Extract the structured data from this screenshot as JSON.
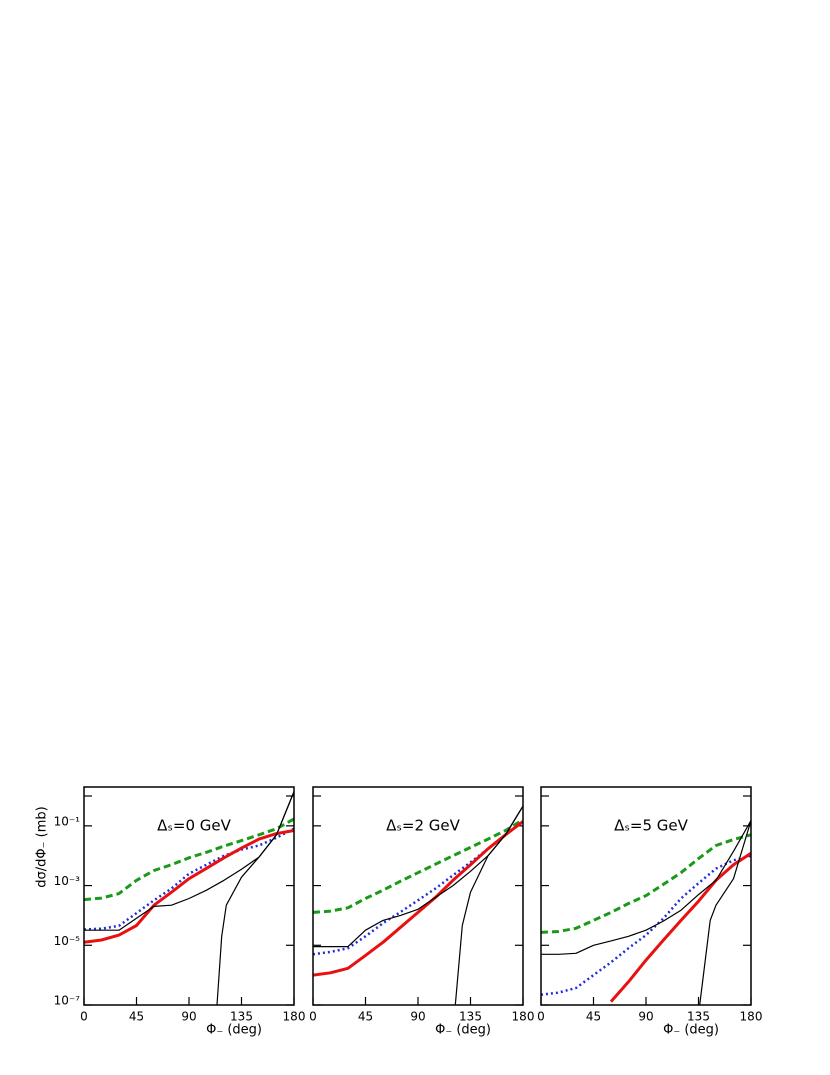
{
  "chart_data": [
    {
      "type": "line",
      "annotation": "Δₛ=0 GeV",
      "y_label": "dσ/dΦ₋ (mb)",
      "x_label": "Φ₋ (deg)",
      "log_y": true,
      "x": [
        0,
        15,
        30,
        45,
        60,
        75,
        90,
        105,
        120,
        135,
        150,
        165,
        180
      ],
      "xlim": [
        0,
        180
      ],
      "xticks": [
        0,
        45,
        90,
        135,
        180
      ],
      "ylim": [
        1e-07,
        2
      ],
      "yticks": [
        {
          "value": 1e-07,
          "label": "10⁻⁷"
        },
        {
          "value": 1e-05,
          "label": "10⁻⁵"
        },
        {
          "value": 0.001,
          "label": "10⁻³"
        },
        {
          "value": 0.1,
          "label": "10⁻¹"
        },
        1
      ],
      "series": [
        {
          "color": "#1a9a1a",
          "dash": "dashed",
          "values": [
            0.00034,
            0.00038,
            0.00054,
            0.0015,
            0.0032,
            0.005,
            0.0085,
            0.013,
            0.021,
            0.032,
            0.05,
            0.08,
            0.17
          ]
        },
        {
          "color": "#1f2fd8",
          "dash": "dotted",
          "values": [
            3.4e-05,
            3.6e-05,
            4.5e-05,
            0.00012,
            0.00032,
            0.0008,
            0.0025,
            0.005,
            0.01,
            0.016,
            0.022,
            0.04,
            0.08
          ]
        },
        {
          "color": "#e81010",
          "dash": "solid",
          "values": [
            1.26e-05,
            1.5e-05,
            2.2e-05,
            4.6e-05,
            0.00022,
            0.0006,
            0.0017,
            0.0038,
            0.0085,
            0.018,
            0.036,
            0.055,
            0.07
          ]
        },
        {
          "color": "#000000",
          "dash": "thin",
          "values": [
            3.2e-05,
            3.2e-05,
            3.2e-05,
            8e-05,
            0.0002,
            0.00022,
            0.00037,
            0.0007,
            0.0015,
            0.0035,
            0.009,
            0.05,
            1.4
          ]
        },
        {
          "color": "#000000",
          "dash": "thin",
          "x": [
            114,
            118,
            122,
            135,
            150,
            165,
            180
          ],
          "values": [
            1e-07,
            2e-05,
            0.00022,
            0.0019,
            0.009,
            0.05,
            1.4
          ]
        }
      ]
    },
    {
      "type": "line",
      "annotation": "Δₛ=2 GeV",
      "x_label": "Φ₋ (deg)",
      "log_y": true,
      "x": [
        0,
        15,
        30,
        45,
        60,
        75,
        90,
        105,
        120,
        135,
        150,
        165,
        180
      ],
      "xlim": [
        0,
        180
      ],
      "xticks": [
        0,
        45,
        90,
        135,
        180
      ],
      "ylim": [
        1e-07,
        2
      ],
      "yticks": [
        1e-07,
        1e-05,
        0.001,
        0.1,
        1
      ],
      "series": [
        {
          "color": "#1a9a1a",
          "dash": "dashed",
          "values": [
            0.000126,
            0.00014,
            0.00018,
            0.00037,
            0.0007,
            0.0014,
            0.0027,
            0.0052,
            0.01,
            0.019,
            0.036,
            0.07,
            0.16
          ]
        },
        {
          "color": "#1f2fd8",
          "dash": "dotted",
          "values": [
            5e-06,
            6e-06,
            8e-06,
            2e-05,
            5.5e-05,
            0.00013,
            0.00032,
            0.0008,
            0.0022,
            0.006,
            0.017,
            0.05,
            0.14
          ]
        },
        {
          "color": "#e81010",
          "dash": "solid",
          "values": [
            1e-06,
            1.2e-06,
            1.7e-06,
            4.6e-06,
            1.26e-05,
            4e-05,
            0.000126,
            0.0004,
            0.0015,
            0.005,
            0.017,
            0.05,
            0.14
          ]
        },
        {
          "color": "#000000",
          "dash": "thin",
          "values": [
            9e-06,
            9e-06,
            9e-06,
            3.2e-05,
            6.8e-05,
            0.0001,
            0.00016,
            0.0004,
            0.001,
            0.003,
            0.01,
            0.05,
            0.46
          ]
        },
        {
          "color": "#000000",
          "dash": "thin",
          "x": [
            122,
            128,
            135,
            150,
            165,
            180
          ],
          "values": [
            1e-07,
            4.6e-05,
            0.0006,
            0.01,
            0.05,
            0.46
          ]
        }
      ]
    },
    {
      "type": "line",
      "annotation": "Δₛ=5 GeV",
      "x_label": "Φ₋ (deg)",
      "log_y": true,
      "x": [
        0,
        15,
        30,
        45,
        60,
        75,
        90,
        105,
        120,
        135,
        150,
        165,
        180
      ],
      "xlim": [
        0,
        180
      ],
      "xticks": [
        0,
        45,
        90,
        135,
        180
      ],
      "ylim": [
        1e-07,
        2
      ],
      "yticks": [
        1e-07,
        1e-05,
        0.001,
        0.1,
        1
      ],
      "series": [
        {
          "color": "#1a9a1a",
          "dash": "dashed",
          "values": [
            2.7e-05,
            2.9e-05,
            3.7e-05,
            6.8e-05,
            0.000126,
            0.00025,
            0.00046,
            0.0011,
            0.0027,
            0.008,
            0.022,
            0.035,
            0.05
          ]
        },
        {
          "color": "#1f2fd8",
          "dash": "dotted",
          "values": [
            2.2e-07,
            2.6e-07,
            3.7e-07,
            1e-06,
            2.7e-06,
            8e-06,
            2.2e-05,
            8e-05,
            0.00037,
            0.0012,
            0.0037,
            0.007,
            0.01
          ]
        },
        {
          "color": "#e81010",
          "dash": "solid",
          "values": [
            null,
            null,
            null,
            null,
            1.3e-07,
            6e-07,
            3.2e-06,
            1.5e-05,
            6.8e-05,
            0.0003,
            0.0015,
            0.005,
            0.012
          ]
        },
        {
          "color": "#000000",
          "dash": "thin",
          "values": [
            5e-06,
            5e-06,
            5.4e-06,
            1e-05,
            1.4e-05,
            2e-05,
            3.2e-05,
            6.5e-05,
            0.00015,
            0.0005,
            0.0015,
            0.014,
            0.15
          ]
        },
        {
          "color": "#000000",
          "dash": "thin",
          "x": [
            136,
            145,
            150,
            165,
            180
          ],
          "values": [
            1e-07,
            6.8e-05,
            0.00022,
            0.0017,
            0.15
          ]
        }
      ]
    }
  ]
}
